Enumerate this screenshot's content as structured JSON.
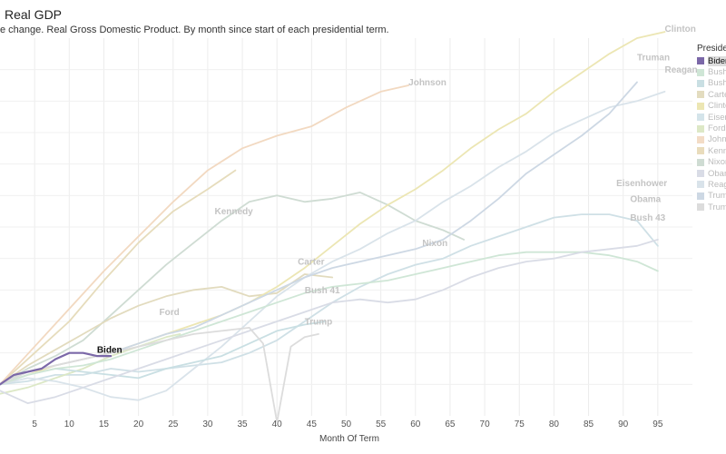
{
  "header": {
    "title": "Real GDP",
    "subtitle": "e change. Real Gross Domestic Product. By month since start of each presidential term."
  },
  "legend": {
    "title": "Presider",
    "items": [
      {
        "label": "Biden",
        "color": "#7b68a8",
        "active": true
      },
      {
        "label": "Bush",
        "color": "#cfe6d6",
        "active": false
      },
      {
        "label": "Bush",
        "color": "#c9dfe3",
        "active": false
      },
      {
        "label": "Carte",
        "color": "#e3dcbf",
        "active": false
      },
      {
        "label": "Clinto",
        "color": "#ece6b3",
        "active": false
      },
      {
        "label": "Eisen",
        "color": "#d4e4ea",
        "active": false
      },
      {
        "label": "Ford",
        "color": "#dde8c6",
        "active": false
      },
      {
        "label": "John",
        "color": "#f3dcc6",
        "active": false
      },
      {
        "label": "Kenn",
        "color": "#e9dcbc",
        "active": false
      },
      {
        "label": "Nixon",
        "color": "#cfdcd3",
        "active": false
      },
      {
        "label": "Obam",
        "color": "#d9dce6",
        "active": false
      },
      {
        "label": "Reag",
        "color": "#d9e3ea",
        "active": false
      },
      {
        "label": "Trum",
        "color": "#cdd8e4",
        "active": false
      },
      {
        "label": "Trum",
        "color": "#dcdcdc",
        "active": false
      }
    ]
  },
  "chart_data": {
    "type": "line",
    "title": "Real GDP",
    "xlabel": "Month Of Term",
    "ylabel": "",
    "xlim": [
      0,
      100
    ],
    "ylim": [
      -0.1,
      1.1
    ],
    "xticks": [
      5,
      10,
      15,
      20,
      25,
      30,
      35,
      40,
      45,
      50,
      55,
      60,
      65,
      70,
      75,
      80,
      85,
      90,
      95
    ],
    "grid": true,
    "legend_position": "right",
    "series": [
      {
        "name": "Eisenhower",
        "color": "#cfe0e6",
        "label_at_end": true,
        "x": [
          0,
          4,
          8,
          12,
          16,
          20,
          24,
          28,
          32,
          36,
          40,
          44,
          48,
          52,
          56,
          60,
          64,
          68,
          72,
          76,
          80,
          84,
          88,
          92,
          95
        ],
        "y": [
          0,
          0.01,
          0.03,
          0.03,
          0.05,
          0.04,
          0.05,
          0.06,
          0.07,
          0.1,
          0.14,
          0.2,
          0.26,
          0.31,
          0.35,
          0.38,
          0.4,
          0.44,
          0.47,
          0.5,
          0.53,
          0.54,
          0.54,
          0.52,
          0.44
        ]
      },
      {
        "name": "Kennedy",
        "color": "#e6dcbc",
        "label_at_end": false,
        "x": [
          0,
          5,
          10,
          15,
          20,
          25,
          30,
          34
        ],
        "y": [
          0,
          0.1,
          0.2,
          0.33,
          0.45,
          0.55,
          0.62,
          0.68
        ]
      },
      {
        "name": "Johnson",
        "color": "#f2d9c1",
        "label_at_end": true,
        "x": [
          0,
          5,
          10,
          15,
          20,
          25,
          30,
          35,
          40,
          45,
          50,
          55,
          59
        ],
        "y": [
          0,
          0.12,
          0.24,
          0.36,
          0.47,
          0.58,
          0.68,
          0.75,
          0.79,
          0.82,
          0.88,
          0.93,
          0.95
        ]
      },
      {
        "name": "Nixon",
        "color": "#cfdcd3",
        "label_at_end": true,
        "x": [
          0,
          4,
          8,
          12,
          16,
          20,
          24,
          28,
          32,
          36,
          40,
          44,
          48,
          52,
          56,
          60,
          64,
          67
        ],
        "y": [
          0,
          0.05,
          0.09,
          0.14,
          0.22,
          0.3,
          0.38,
          0.45,
          0.52,
          0.58,
          0.6,
          0.58,
          0.59,
          0.61,
          0.57,
          0.52,
          0.49,
          0.46
        ]
      },
      {
        "name": "Ford",
        "color": "#dce8c6",
        "label_at_end": false,
        "x": [
          0,
          4,
          8,
          12,
          16,
          20,
          24,
          26
        ],
        "y": [
          -0.03,
          -0.01,
          0.02,
          0.05,
          0.09,
          0.12,
          0.15,
          0.16
        ]
      },
      {
        "name": "Carter",
        "color": "#e2dbbe",
        "label_at_end": false,
        "x": [
          0,
          4,
          8,
          12,
          16,
          20,
          24,
          28,
          32,
          36,
          40,
          44,
          48
        ],
        "y": [
          0,
          0.06,
          0.11,
          0.16,
          0.21,
          0.25,
          0.28,
          0.3,
          0.31,
          0.28,
          0.29,
          0.35,
          0.34
        ]
      },
      {
        "name": "Reagan",
        "color": "#d9e3ea",
        "label_at_end": true,
        "x": [
          0,
          4,
          8,
          12,
          16,
          20,
          24,
          28,
          32,
          36,
          40,
          44,
          48,
          52,
          56,
          60,
          64,
          68,
          72,
          76,
          80,
          84,
          88,
          92,
          96
        ],
        "y": [
          0,
          0.02,
          0.01,
          -0.01,
          -0.04,
          -0.05,
          -0.02,
          0.05,
          0.12,
          0.2,
          0.28,
          0.34,
          0.39,
          0.43,
          0.48,
          0.52,
          0.58,
          0.63,
          0.69,
          0.74,
          0.8,
          0.84,
          0.88,
          0.9,
          0.93
        ]
      },
      {
        "name": "Bush 41",
        "color": "#c9dfe3",
        "label_at_end": false,
        "x": [
          0,
          4,
          8,
          12,
          16,
          20,
          24,
          28,
          32,
          36,
          40,
          44,
          47
        ],
        "y": [
          0,
          0.03,
          0.05,
          0.04,
          0.03,
          0.02,
          0.05,
          0.07,
          0.09,
          0.13,
          0.17,
          0.19,
          0.2
        ]
      },
      {
        "name": "Clinton",
        "color": "#ece6b3",
        "label_at_end": true,
        "x": [
          0,
          4,
          8,
          12,
          16,
          20,
          24,
          28,
          32,
          36,
          40,
          44,
          48,
          52,
          56,
          60,
          64,
          68,
          72,
          76,
          80,
          84,
          88,
          92,
          96
        ],
        "y": [
          0,
          0.03,
          0.06,
          0.08,
          0.1,
          0.13,
          0.16,
          0.19,
          0.22,
          0.26,
          0.31,
          0.37,
          0.44,
          0.51,
          0.57,
          0.62,
          0.68,
          0.75,
          0.81,
          0.86,
          0.93,
          0.99,
          1.05,
          1.1,
          1.12
        ]
      },
      {
        "name": "Bush 43",
        "color": "#cfe6d6",
        "label_at_end": true,
        "x": [
          0,
          4,
          8,
          12,
          16,
          20,
          24,
          28,
          32,
          36,
          40,
          44,
          48,
          52,
          56,
          60,
          64,
          68,
          72,
          76,
          80,
          84,
          88,
          92,
          95
        ],
        "y": [
          0,
          0.03,
          0.05,
          0.06,
          0.08,
          0.11,
          0.14,
          0.17,
          0.2,
          0.23,
          0.26,
          0.29,
          0.31,
          0.32,
          0.33,
          0.35,
          0.37,
          0.39,
          0.41,
          0.42,
          0.42,
          0.42,
          0.41,
          0.39,
          0.36
        ]
      },
      {
        "name": "Obama",
        "color": "#d9dce6",
        "label_at_end": true,
        "x": [
          0,
          4,
          8,
          12,
          16,
          20,
          24,
          28,
          32,
          36,
          40,
          44,
          48,
          52,
          56,
          60,
          64,
          68,
          72,
          76,
          80,
          84,
          88,
          92,
          95
        ],
        "y": [
          -0.02,
          -0.06,
          -0.04,
          -0.01,
          0.02,
          0.05,
          0.08,
          0.11,
          0.14,
          0.17,
          0.2,
          0.23,
          0.26,
          0.27,
          0.26,
          0.27,
          0.3,
          0.34,
          0.37,
          0.39,
          0.4,
          0.42,
          0.43,
          0.44,
          0.46
        ]
      },
      {
        "name": "Trump",
        "color": "#cdd8e4",
        "label_at_end": true,
        "x": [
          0,
          4,
          8,
          12,
          16,
          20,
          24,
          28,
          32,
          36,
          40,
          44,
          48,
          52,
          56,
          60,
          64,
          68,
          72,
          76,
          80,
          84,
          88,
          92
        ],
        "y": [
          0,
          0.04,
          0.06,
          0.08,
          0.1,
          0.13,
          0.16,
          0.18,
          0.22,
          0.26,
          0.3,
          0.34,
          0.37,
          0.39,
          0.41,
          0.43,
          0.46,
          0.52,
          0.59,
          0.67,
          0.73,
          0.79,
          0.86,
          0.96
        ]
      },
      {
        "name": "Trump",
        "color": "#dcdcdc",
        "label_at_end": true,
        "x": [
          0,
          4,
          8,
          12,
          16,
          20,
          24,
          28,
          32,
          36,
          38,
          40,
          42,
          44,
          46
        ],
        "y": [
          0,
          0.04,
          0.06,
          0.08,
          0.1,
          0.12,
          0.14,
          0.16,
          0.17,
          0.18,
          0.13,
          -0.12,
          0.12,
          0.15,
          0.16
        ]
      },
      {
        "name": "Biden",
        "color": "#7b68a8",
        "label_at_end": true,
        "x": [
          0,
          2,
          4,
          6,
          8,
          10,
          12,
          14,
          16
        ],
        "y": [
          0,
          0.03,
          0.04,
          0.05,
          0.08,
          0.1,
          0.1,
          0.09,
          0.09
        ]
      }
    ],
    "annotations": [
      {
        "text": "Clinton",
        "x": 96,
        "y": 1.12
      },
      {
        "text": "Truman",
        "x": 92,
        "y": 1.03
      },
      {
        "text": "Reagan",
        "x": 96,
        "y": 0.99
      },
      {
        "text": "Johnson",
        "x": 59,
        "y": 0.95
      },
      {
        "text": "Kennedy",
        "x": 31,
        "y": 0.54
      },
      {
        "text": "Carter",
        "x": 43,
        "y": 0.38
      },
      {
        "text": "Nixon",
        "x": 61,
        "y": 0.44
      },
      {
        "text": "Eisenhower",
        "x": 89,
        "y": 0.63
      },
      {
        "text": "Obama",
        "x": 91,
        "y": 0.58
      },
      {
        "text": "Bush 43",
        "x": 91,
        "y": 0.52
      },
      {
        "text": "Ford",
        "x": 23,
        "y": 0.22
      },
      {
        "text": "Bush 41",
        "x": 44,
        "y": 0.29
      },
      {
        "text": "Trump",
        "x": 44,
        "y": 0.19
      },
      {
        "text": "Biden",
        "x": 14,
        "y": 0.1
      }
    ]
  }
}
